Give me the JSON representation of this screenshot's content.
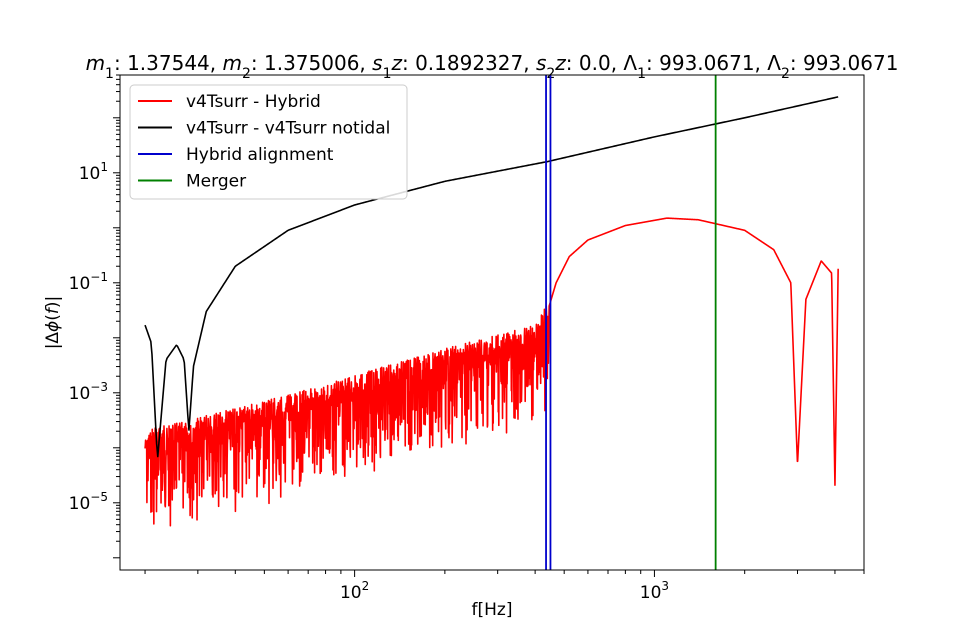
{
  "chart_data": {
    "type": "line",
    "title_parts": [
      {
        "t": "m",
        "i": true
      },
      {
        "t": "1",
        "sub": true
      },
      {
        "t": ": 1.37544, "
      },
      {
        "t": "m",
        "i": true
      },
      {
        "t": "2",
        "sub": true
      },
      {
        "t": ": 1.375006, "
      },
      {
        "t": "s",
        "i": true
      },
      {
        "t": "1",
        "sub": true
      },
      {
        "t": "z",
        "i": true
      },
      {
        "t": ": 0.1892327, "
      },
      {
        "t": "s",
        "i": true
      },
      {
        "t": "2",
        "sub": true
      },
      {
        "t": "z",
        "i": true
      },
      {
        "t": ": 0.0, "
      },
      {
        "t": "Λ"
      },
      {
        "t": "1",
        "sub": true
      },
      {
        "t": ": 993.0671, "
      },
      {
        "t": "Λ"
      },
      {
        "t": "2",
        "sub": true
      },
      {
        "t": ": 993.0671"
      }
    ],
    "xlabel": "f[Hz]",
    "ylabel_parts": [
      {
        "t": "|Δ"
      },
      {
        "t": "ϕ",
        "i": true
      },
      {
        "t": "("
      },
      {
        "t": "f",
        "i": true
      },
      {
        "t": ")|"
      }
    ],
    "xscale": "log",
    "yscale": "log",
    "xlim": [
      16.5,
      5000
    ],
    "ylim": [
      6e-07,
      600
    ],
    "x_ticks": [
      {
        "v": 100,
        "base": "10",
        "exp": "2"
      },
      {
        "v": 1000,
        "base": "10",
        "exp": "3"
      }
    ],
    "y_ticks": [
      {
        "v": 1e-05,
        "base": "10",
        "exp": "−5"
      },
      {
        "v": 0.001,
        "base": "10",
        "exp": "−3"
      },
      {
        "v": 0.1,
        "base": "10",
        "exp": "−1"
      },
      {
        "v": 10,
        "base": "10",
        "exp": "1"
      }
    ],
    "legend_position": "upper-left",
    "series": [
      {
        "name": "v4Tsurr - Hybrid",
        "color": "#ff0000",
        "kind": "noisy",
        "points": [
          [
            20,
            0.00015
          ],
          [
            30,
            0.00025
          ],
          [
            50,
            0.0005
          ],
          [
            80,
            0.001
          ],
          [
            120,
            0.002
          ],
          [
            200,
            0.0045
          ],
          [
            300,
            0.008
          ],
          [
            400,
            0.012
          ],
          [
            440,
            0.03
          ],
          [
            470,
            0.1
          ],
          [
            520,
            0.3
          ],
          [
            600,
            0.6
          ],
          [
            800,
            1.1
          ],
          [
            1100,
            1.5
          ],
          [
            1400,
            1.4
          ],
          [
            2000,
            0.9
          ],
          [
            2500,
            0.4
          ],
          [
            2850,
            0.1
          ],
          [
            3000,
            5e-05
          ],
          [
            3200,
            0.05
          ],
          [
            3600,
            0.25
          ],
          [
            3900,
            0.15
          ],
          [
            4000,
            2e-05
          ],
          [
            4100,
            0.18
          ]
        ]
      },
      {
        "name": "v4Tsurr - v4Tsurr notidal",
        "color": "#000000",
        "kind": "smooth",
        "points": [
          [
            20,
            0.017
          ],
          [
            21,
            0.008
          ],
          [
            22,
            6e-05
          ],
          [
            23.5,
            0.004
          ],
          [
            25.5,
            0.0075
          ],
          [
            27,
            0.004
          ],
          [
            28,
            0.0002
          ],
          [
            29,
            0.003
          ],
          [
            32,
            0.03
          ],
          [
            40,
            0.2
          ],
          [
            60,
            0.9
          ],
          [
            100,
            2.6
          ],
          [
            200,
            7.0
          ],
          [
            440,
            16
          ],
          [
            1000,
            45
          ],
          [
            2000,
            100
          ],
          [
            4100,
            240
          ]
        ]
      }
    ],
    "vlines": [
      {
        "name": "Hybrid alignment",
        "color": "#0000cc",
        "x": [
          435,
          450
        ]
      },
      {
        "name": "Merger",
        "color": "#008000",
        "x": [
          1600
        ]
      }
    ]
  }
}
